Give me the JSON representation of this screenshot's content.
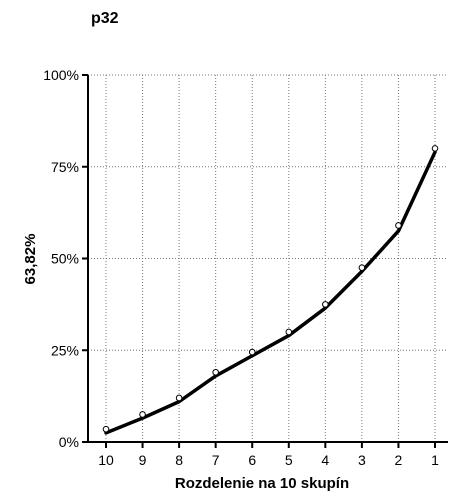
{
  "chart_data": {
    "type": "line",
    "title": "p32",
    "xlabel": "Rozdelenie na 10 skupín",
    "ylabel": "63,82%",
    "categories": [
      "10",
      "9",
      "8",
      "7",
      "6",
      "5",
      "4",
      "3",
      "2",
      "1"
    ],
    "y_ticks": [
      "0%",
      "25%",
      "50%",
      "75%",
      "100%"
    ],
    "ylim": [
      0,
      100
    ],
    "grid": true,
    "series": [
      {
        "style": "line",
        "color": "#000000",
        "values": [
          2.5,
          6.5,
          11,
          18,
          23.5,
          29,
          36.5,
          46.5,
          57.5,
          79
        ]
      },
      {
        "style": "markers",
        "marker": "open-circle",
        "color": "#000000",
        "values": [
          3.5,
          7.5,
          12,
          19,
          24.5,
          30,
          37.5,
          47.5,
          59,
          80
        ]
      }
    ]
  }
}
